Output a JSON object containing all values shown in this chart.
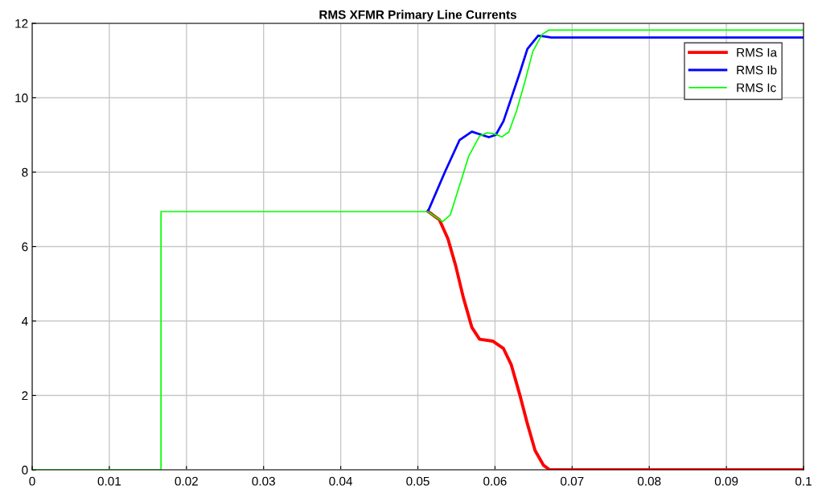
{
  "chart_data": {
    "type": "line",
    "title": "RMS XFMR Primary Line Currents",
    "xlim": [
      0,
      0.1
    ],
    "xticks": [
      0,
      0.01,
      0.02,
      0.03,
      0.04,
      0.05,
      0.06,
      0.07,
      0.08,
      0.09,
      0.1
    ],
    "ylim": [
      0,
      12
    ],
    "yticks": [
      0,
      2,
      4,
      6,
      8,
      10,
      12
    ],
    "grid": true,
    "legend": "top right",
    "series": [
      {
        "name": "RMS Ia",
        "color": "#ff0000",
        "x": [
          0.0513,
          0.0528,
          0.0539,
          0.0549,
          0.0559,
          0.057,
          0.058,
          0.0597,
          0.0611,
          0.0621,
          0.0632,
          0.0642,
          0.0652,
          0.0663,
          0.0671,
          0.1
        ],
        "values": [
          6.95,
          6.72,
          6.21,
          5.49,
          4.63,
          3.83,
          3.51,
          3.46,
          3.26,
          2.83,
          2.03,
          1.24,
          0.52,
          0.12,
          0,
          0
        ]
      },
      {
        "name": "RMS Ib",
        "color": "#0000ff",
        "x": [
          0.0513,
          0.0535,
          0.0554,
          0.057,
          0.0583,
          0.0592,
          0.0601,
          0.0611,
          0.0621,
          0.0632,
          0.0642,
          0.0656,
          0.0663,
          0.0673,
          0.1
        ],
        "values": [
          6.94,
          8.0,
          8.86,
          9.09,
          9.0,
          8.94,
          9.0,
          9.37,
          9.98,
          10.66,
          11.31,
          11.67,
          11.65,
          11.62,
          11.62
        ]
      },
      {
        "name": "RMS Ic",
        "color": "#00ff00",
        "x": [
          0,
          0.0167,
          0.0167,
          0.0513,
          0.0532,
          0.0542,
          0.0554,
          0.0566,
          0.058,
          0.059,
          0.0599,
          0.0609,
          0.0618,
          0.0628,
          0.0639,
          0.0649,
          0.0661,
          0.067,
          0.1
        ],
        "values": [
          0,
          0,
          6.94,
          6.94,
          6.67,
          6.85,
          7.64,
          8.43,
          8.97,
          9.06,
          9.03,
          8.95,
          9.08,
          9.65,
          10.45,
          11.24,
          11.7,
          11.82,
          11.82
        ]
      }
    ]
  }
}
